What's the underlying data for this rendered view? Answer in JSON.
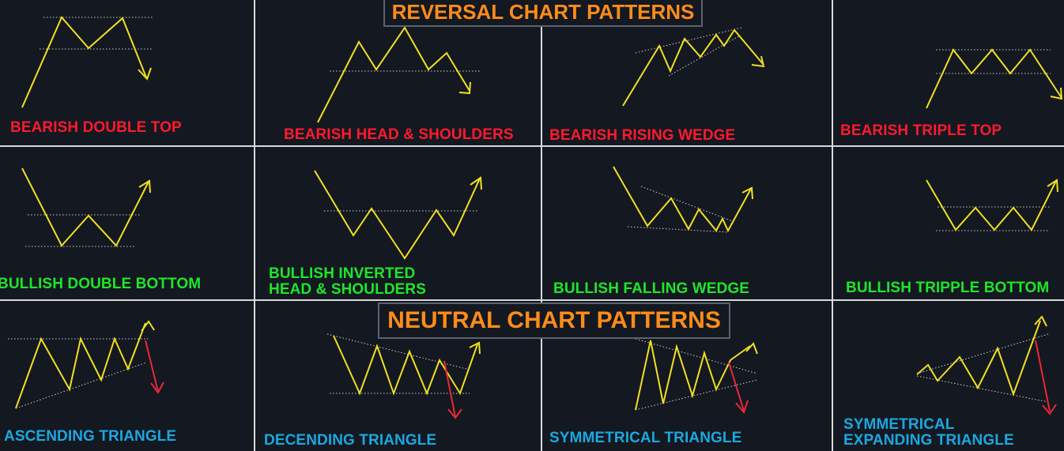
{
  "colors": {
    "bearish": "#ff1a2e",
    "bullish": "#1ee62a",
    "neutral": "#1aa8e0",
    "banner": "#ff8c1a",
    "price_line": "#f0e020",
    "breakdown_arrow": "#e8283a",
    "dotted": "#cfcfcf",
    "grid": "#d9d9d9"
  },
  "banners": {
    "reversal": "REVERSAL CHART PATTERNS",
    "neutral": "NEUTRAL CHART PATTERNS"
  },
  "patterns": [
    {
      "id": "bearish-double-top",
      "label": "BEARISH DOUBLE TOP",
      "sentiment": "bearish"
    },
    {
      "id": "bearish-head-shoulders",
      "label": "BEARISH HEAD & SHOULDERS",
      "sentiment": "bearish"
    },
    {
      "id": "bearish-rising-wedge",
      "label": "BEARISH RISING WEDGE",
      "sentiment": "bearish"
    },
    {
      "id": "bearish-triple-top",
      "label": "BEARISH TRIPLE TOP",
      "sentiment": "bearish"
    },
    {
      "id": "bullish-double-bottom",
      "label": "BULLISH DOUBLE BOTTOM",
      "sentiment": "bullish"
    },
    {
      "id": "bullish-inverted-head-shoulders",
      "label": "BULLISH INVERTED\nHEAD & SHOULDERS",
      "sentiment": "bullish"
    },
    {
      "id": "bullish-falling-wedge",
      "label": "BULLISH FALLING WEDGE",
      "sentiment": "bullish"
    },
    {
      "id": "bullish-tripple-bottom",
      "label": "BULLISH TRIPPLE BOTTOM",
      "sentiment": "bullish"
    },
    {
      "id": "ascending-triangle",
      "label": "ASCENDING TRIANGLE",
      "sentiment": "neutral"
    },
    {
      "id": "decending-triangle",
      "label": "DECENDING TRIANGLE",
      "sentiment": "neutral"
    },
    {
      "id": "symmetrical-triangle",
      "label": "SYMMETRICAL TRIANGLE",
      "sentiment": "neutral"
    },
    {
      "id": "symmetrical-expanding-triangle",
      "label": "SYMMETRICAL\nEXPANDING TRIANGLE",
      "sentiment": "neutral"
    }
  ]
}
